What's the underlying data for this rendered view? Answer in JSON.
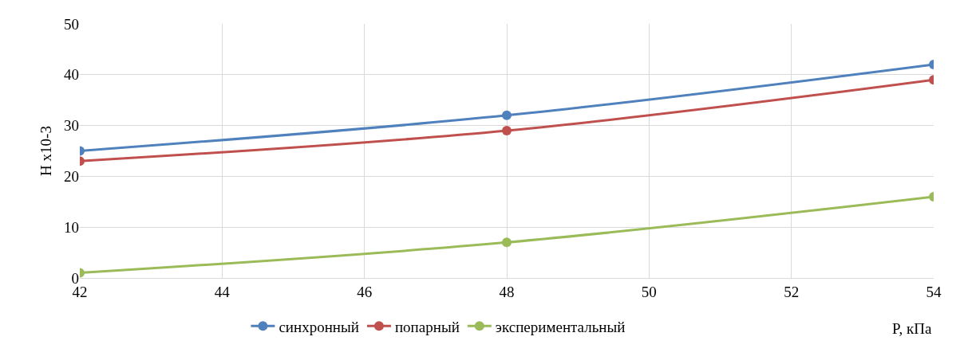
{
  "chart_data": {
    "type": "line",
    "xlabel": "P, кПа",
    "ylabel": "H x10-3",
    "x": [
      42,
      48,
      54
    ],
    "series": [
      {
        "name": "синхронный",
        "color": "#4f81bd",
        "values": [
          25,
          32,
          42
        ]
      },
      {
        "name": "попарный",
        "color": "#c0504d",
        "values": [
          23,
          29,
          39
        ]
      },
      {
        "name": "экспериментальный",
        "color": "#9bbb59",
        "values": [
          1,
          7,
          16
        ]
      }
    ],
    "xlim": [
      42,
      54
    ],
    "xticks": [
      42,
      44,
      46,
      48,
      50,
      52,
      54
    ],
    "ylim": [
      0,
      50
    ],
    "yticks": [
      0,
      10,
      20,
      30,
      40,
      50
    ],
    "grid": true,
    "legend": "bottom",
    "marker": "circle",
    "line_style": "solid"
  }
}
